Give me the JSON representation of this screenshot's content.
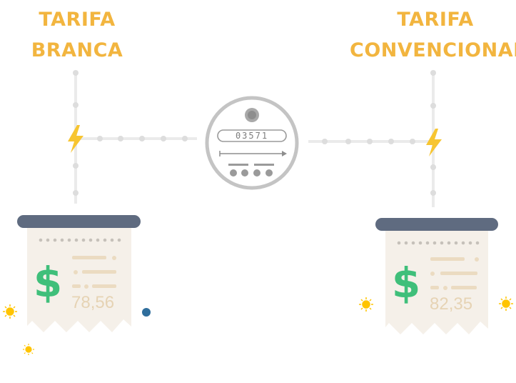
{
  "left": {
    "title_line1": "TARIFA",
    "title_line2": "BRANCA",
    "amount": "78,56"
  },
  "right": {
    "title_line1": "TARIFA",
    "title_line2": "CONVENCIONAL",
    "amount": "82,35"
  },
  "meter": {
    "reading": "03571"
  },
  "colors": {
    "title": "#F2B53F",
    "bolt": "#F7C531",
    "money": "#3FBF7A",
    "receipt": "#F5F0E9",
    "receipt_bar": "#5F6B80",
    "meter_ring": "#C4C4C4",
    "moon": "#2F6E9C",
    "sun": "#FFC400"
  }
}
